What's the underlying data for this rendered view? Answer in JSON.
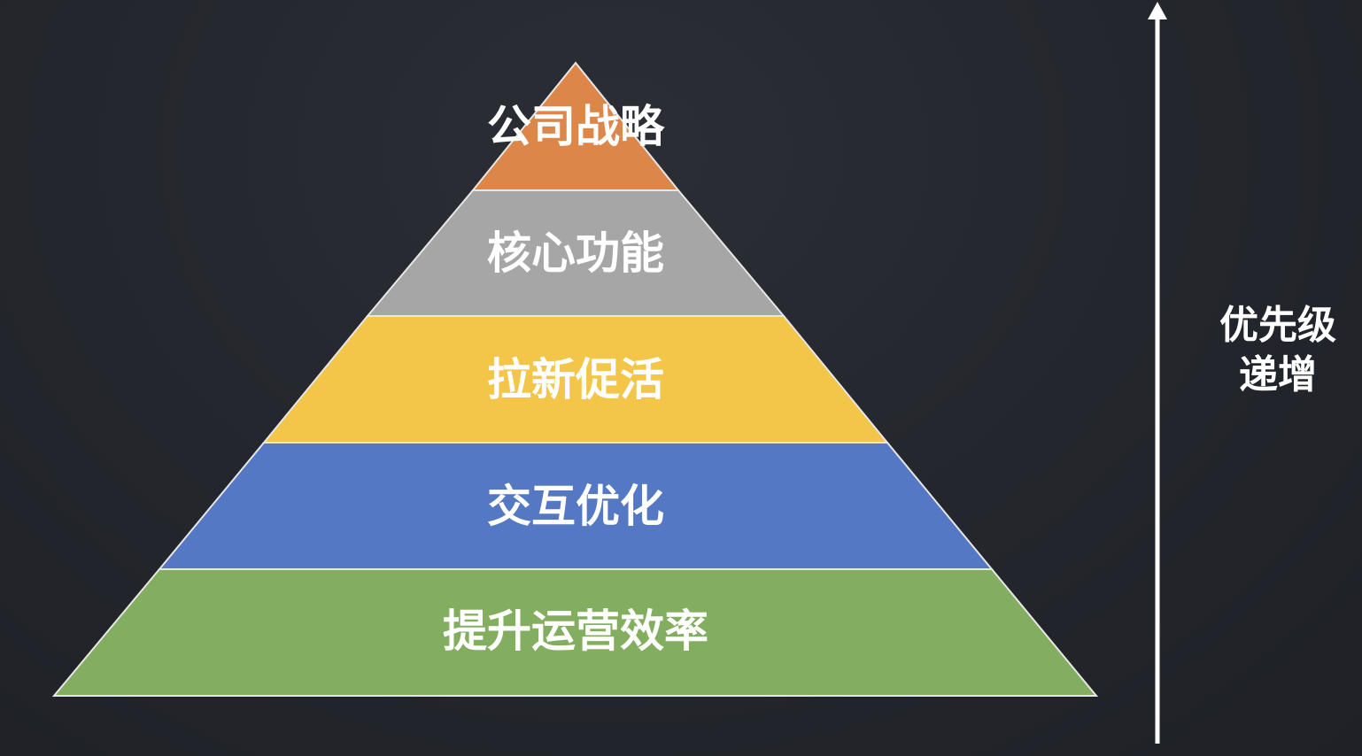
{
  "pyramid": {
    "levels": [
      {
        "label": "公司战略",
        "color": "#dd864a"
      },
      {
        "label": "核心功能",
        "color": "#a6a6a6"
      },
      {
        "label": "拉新促活",
        "color": "#f3c548"
      },
      {
        "label": "交互优化",
        "color": "#5478c3"
      },
      {
        "label": "提升运营效率",
        "color": "#84ae5f"
      }
    ]
  },
  "axis": {
    "line1": "优先级",
    "line2": "递增",
    "color": "#ffffff"
  }
}
